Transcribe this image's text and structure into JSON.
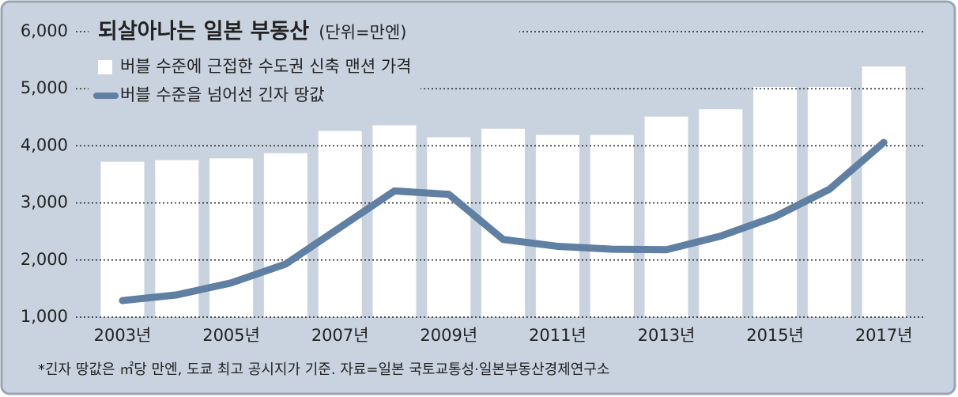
{
  "chart_data": {
    "type": "bar-line",
    "title": "되살아나는 일본 부동산",
    "subtitle": "(단위=만엔)",
    "note": "*긴자 땅값은 ㎡당 만엔, 도쿄 최고 공시지가 기준. 자료=일본 국토교통성·일본부동산경제연구소",
    "categories": [
      "2003년",
      null,
      "2005년",
      null,
      "2007년",
      null,
      "2009년",
      null,
      "2011년",
      null,
      "2013년",
      null,
      "2015년",
      null,
      "2017년"
    ],
    "series": [
      {
        "name": "버블 수준에 근접한 수도권 신축 맨션 가격",
        "type": "bar",
        "color": "#ffffff",
        "values": [
          3720,
          3750,
          3780,
          3870,
          4260,
          4360,
          4150,
          4300,
          4190,
          4190,
          4510,
          4640,
          5030,
          5030,
          5390
        ]
      },
      {
        "name": "버블 수준을 넘어선 긴자 땅값",
        "type": "line",
        "color": "#5f7fa3",
        "values": [
          1290,
          1390,
          1600,
          1930,
          2570,
          3210,
          3150,
          2360,
          2240,
          2190,
          2180,
          2420,
          2760,
          3240,
          4060
        ]
      }
    ],
    "ylim": [
      1000,
      6000
    ],
    "yticks": [
      {
        "value": 1000,
        "label": "1,000"
      },
      {
        "value": 2000,
        "label": "2,000"
      },
      {
        "value": 3000,
        "label": "3,000"
      },
      {
        "value": 4000,
        "label": "4,000"
      },
      {
        "value": 5000,
        "label": "5,000"
      },
      {
        "value": 6000,
        "label": "6,000"
      }
    ],
    "grid": true
  }
}
